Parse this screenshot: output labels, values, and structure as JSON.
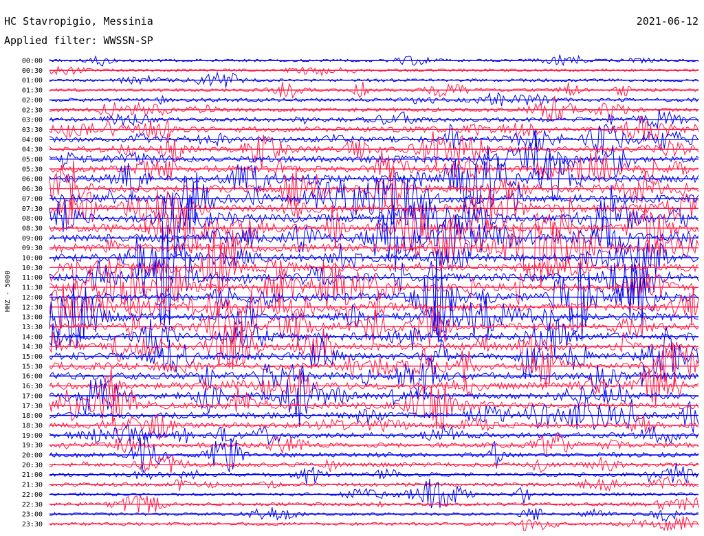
{
  "station": "HC Stavropigio, Messinia",
  "filter_label": "Applied filter: WWSSN-SP",
  "date": "2021-06-12",
  "channel_label": "HHZ - 5000",
  "colors": {
    "even_row": "#0000ee",
    "odd_row": "#ff1744",
    "baseline": "#0000ee"
  },
  "chart_data": {
    "type": "line",
    "subtype": "helicorder",
    "title": "HC Stavropigio, Messinia",
    "subtitle": "Applied filter: WWSSN-SP",
    "date": "2021-06-12",
    "ylabel": "HHZ - 5000",
    "row_interval_minutes": 30,
    "row_labels": [
      "00:00",
      "00:30",
      "01:00",
      "01:30",
      "02:00",
      "02:30",
      "03:00",
      "03:30",
      "04:00",
      "04:30",
      "05:00",
      "05:30",
      "06:00",
      "06:30",
      "07:00",
      "07:30",
      "08:00",
      "08:30",
      "09:00",
      "09:30",
      "10:00",
      "10:30",
      "11:00",
      "11:30",
      "12:00",
      "12:30",
      "13:00",
      "13:30",
      "14:00",
      "14:30",
      "15:00",
      "15:30",
      "16:00",
      "16:30",
      "17:00",
      "17:30",
      "18:00",
      "18:30",
      "19:00",
      "19:30",
      "20:00",
      "20:30",
      "21:00",
      "21:30",
      "22:00",
      "22:30",
      "23:00",
      "23:30"
    ],
    "series_colors": [
      "#0000ee",
      "#ff1744"
    ],
    "activity_level_by_row": [
      0.15,
      0.2,
      0.2,
      0.25,
      0.3,
      0.35,
      0.4,
      0.55,
      0.6,
      0.65,
      0.7,
      0.75,
      0.8,
      0.85,
      0.9,
      0.95,
      0.95,
      0.95,
      0.95,
      0.95,
      0.9,
      0.9,
      0.9,
      0.9,
      0.9,
      0.85,
      0.85,
      0.85,
      0.85,
      0.8,
      0.8,
      0.8,
      0.8,
      0.75,
      0.75,
      0.7,
      0.65,
      0.6,
      0.55,
      0.5,
      0.45,
      0.4,
      0.35,
      0.3,
      0.25,
      0.25,
      0.2,
      0.2
    ]
  }
}
